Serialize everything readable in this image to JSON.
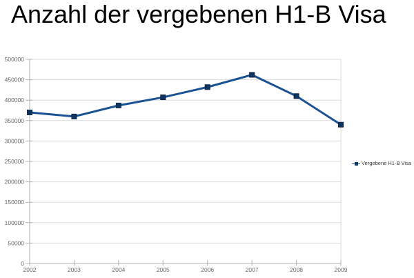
{
  "title": "Anzahl der vergebenen H1-B Visa",
  "legend": {
    "label": "Vergebene H1-B Visa"
  },
  "colors": {
    "background": "#ffffff",
    "title": "#000000",
    "line": "#1b5293",
    "marker": "#103461",
    "marker_border": "#0c2847",
    "grid": "#dcdcdc",
    "plot_border": "#dcdcdc",
    "axis": "#b0b0b0",
    "tick": "#b0b0b0",
    "tick_label": "#666666",
    "legend_text": "#333333"
  },
  "chart_data": {
    "type": "line",
    "title": "Anzahl der vergebenen H1-B Visa",
    "categories": [
      "2002",
      "2003",
      "2004",
      "2005",
      "2006",
      "2007",
      "2008",
      "2009"
    ],
    "series": [
      {
        "name": "Vergebene H1-B Visa",
        "values": [
          370000,
          360000,
          387000,
          407000,
          432000,
          462000,
          410000,
          340000
        ]
      }
    ],
    "xlabel": "",
    "ylabel": "",
    "ylim": [
      0,
      500000
    ],
    "ytick_step": 50000,
    "ytick_labels": [
      "0",
      "50000",
      "100000",
      "150000",
      "200000",
      "250000",
      "300000",
      "350000",
      "400000",
      "450000",
      "500000"
    ],
    "grid": true,
    "legend_position": "right",
    "marker_shape": "square"
  }
}
